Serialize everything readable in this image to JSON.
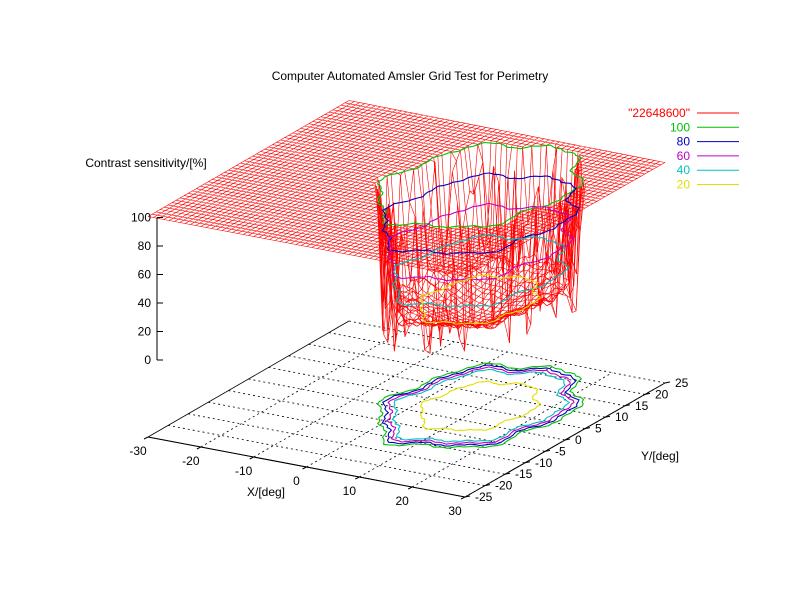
{
  "chart_data": {
    "type": "surface3d",
    "title": "Computer Automated Amsler Grid Test for Perimetry",
    "xlabel": "X/[deg]",
    "ylabel": "Y/[deg]",
    "zlabel": "Contrast sensitivity/[%]",
    "x_ticks": [
      "-30",
      "-20",
      "-10",
      "0",
      "10",
      "20",
      "30"
    ],
    "y_ticks": [
      "-25",
      "-20",
      "-15",
      "-10",
      "-5",
      "0",
      "5",
      "10",
      "15",
      "20",
      "25"
    ],
    "z_ticks": [
      "0",
      "20",
      "40",
      "60",
      "80",
      "100"
    ],
    "xlim": [
      -30,
      30
    ],
    "ylim": [
      -25,
      25
    ],
    "zlim": [
      0,
      100
    ],
    "surface": {
      "name": "\"22648600\"",
      "color": "#ff0000",
      "plateau_level": 100,
      "defect_floor": 8,
      "defect_region": {
        "x_range": [
          -5,
          24
        ],
        "y_range": [
          -12,
          23
        ]
      }
    },
    "contour_levels": [
      {
        "level": "100",
        "color": "#00c000"
      },
      {
        "level": "80",
        "color": "#0000c0"
      },
      {
        "level": "60",
        "color": "#c000c0"
      },
      {
        "level": "40",
        "color": "#00c0c0"
      },
      {
        "level": "20",
        "color": "#e0e000"
      }
    ],
    "legend_position": "top-right"
  }
}
